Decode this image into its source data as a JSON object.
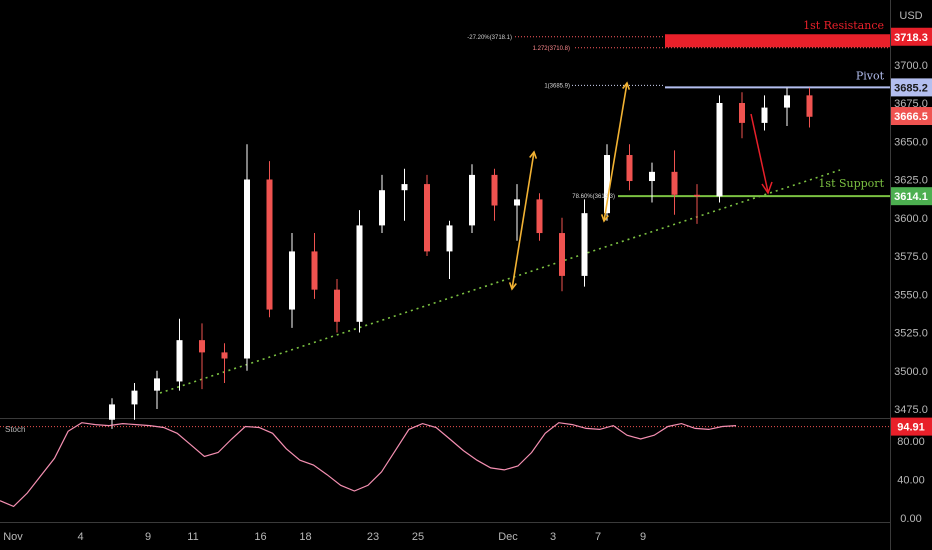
{
  "chart_data": {
    "type": "candlestick",
    "currency": "USD",
    "price_axis": {
      "ticks": [
        3475,
        3500,
        3525,
        3550,
        3575,
        3600,
        3625,
        3650,
        3675,
        3700
      ],
      "tick_labels": [
        "3475.0",
        "3500.0",
        "3525.0",
        "3550.0",
        "3575.0",
        "3600.0",
        "3625.0",
        "3650.0",
        "3675.0",
        "3700.0"
      ]
    },
    "x_axis": {
      "labels": [
        "Nov",
        "4",
        "9",
        "11",
        "16",
        "18",
        "23",
        "25",
        "Dec",
        "3",
        "7",
        "9"
      ],
      "label_bars": [
        0,
        3,
        6,
        8,
        11,
        13,
        16,
        18,
        22,
        24,
        26,
        28
      ]
    },
    "candles": [
      {
        "o": 3468,
        "h": 3482,
        "l": 3462,
        "c": 3478
      },
      {
        "o": 3478,
        "h": 3492,
        "l": 3468,
        "c": 3487
      },
      {
        "o": 3487,
        "h": 3500,
        "l": 3475,
        "c": 3495
      },
      {
        "o": 3493,
        "h": 3534,
        "l": 3487,
        "c": 3520
      },
      {
        "o": 3520,
        "h": 3531,
        "l": 3488,
        "c": 3512
      },
      {
        "o": 3512,
        "h": 3518,
        "l": 3492,
        "c": 3508
      },
      {
        "o": 3508,
        "h": 3648,
        "l": 3500,
        "c": 3625
      },
      {
        "o": 3625,
        "h": 3637,
        "l": 3535,
        "c": 3540
      },
      {
        "o": 3540,
        "h": 3590,
        "l": 3528,
        "c": 3578
      },
      {
        "o": 3578,
        "h": 3590,
        "l": 3547,
        "c": 3553
      },
      {
        "o": 3553,
        "h": 3560,
        "l": 3525,
        "c": 3532
      },
      {
        "o": 3532,
        "h": 3605,
        "l": 3525,
        "c": 3595
      },
      {
        "o": 3595,
        "h": 3628,
        "l": 3590,
        "c": 3618
      },
      {
        "o": 3618,
        "h": 3632,
        "l": 3598,
        "c": 3622
      },
      {
        "o": 3622,
        "h": 3628,
        "l": 3575,
        "c": 3578
      },
      {
        "o": 3578,
        "h": 3598,
        "l": 3560,
        "c": 3595
      },
      {
        "o": 3595,
        "h": 3635,
        "l": 3590,
        "c": 3628
      },
      {
        "o": 3628,
        "h": 3632,
        "l": 3598,
        "c": 3608
      },
      {
        "o": 3608,
        "h": 3622,
        "l": 3585,
        "c": 3612
      },
      {
        "o": 3612,
        "h": 3616,
        "l": 3585,
        "c": 3590
      },
      {
        "o": 3590,
        "h": 3600,
        "l": 3552,
        "c": 3562
      },
      {
        "o": 3562,
        "h": 3612,
        "l": 3555,
        "c": 3603
      },
      {
        "o": 3603,
        "h": 3648,
        "l": 3598,
        "c": 3641
      },
      {
        "o": 3641,
        "h": 3648,
        "l": 3618,
        "c": 3624
      },
      {
        "o": 3624,
        "h": 3636,
        "l": 3610,
        "c": 3630
      },
      {
        "o": 3630,
        "h": 3644,
        "l": 3602,
        "c": 3615
      },
      {
        "o": 3615,
        "h": 3622,
        "l": 3596,
        "c": 3614
      },
      {
        "o": 3614,
        "h": 3680,
        "l": 3610,
        "c": 3675
      },
      {
        "o": 3675,
        "h": 3682,
        "l": 3652,
        "c": 3662
      },
      {
        "o": 3662,
        "h": 3680,
        "l": 3657,
        "c": 3672
      },
      {
        "o": 3672,
        "h": 3685,
        "l": 3660,
        "c": 3680
      },
      {
        "o": 3680,
        "h": 3685,
        "l": 3659,
        "c": 3666
      }
    ],
    "annotations": {
      "resistance_label": "1st Resistance",
      "resistance_price": "3718.3",
      "resistance_value": 3718.3,
      "pivot_label": "Pivot",
      "pivot_price": "3685.2",
      "pivot_value": 3685.2,
      "support_label": "1st Support",
      "support_price": "3614.1",
      "support_value": 3614.1,
      "current_price": "3666.5",
      "current_value": 3666.5,
      "fib_ext_1": "-27.20%(3718.1)",
      "fib_ext_2": "1.272(3710.8)",
      "fib_1": "1(3685.9)",
      "fib_786": "78.60%(3613.3)"
    },
    "oscillator": {
      "name": "Stoch",
      "ticks": [
        0,
        40,
        80
      ],
      "tick_labels": [
        "0.00",
        "40.00",
        "80.00"
      ],
      "current": "94.91",
      "current_value": 94.91,
      "values": [
        18,
        12,
        26,
        44,
        62,
        90,
        99,
        97,
        96,
        98,
        97,
        96,
        94,
        88,
        76,
        64,
        68,
        82,
        95,
        94,
        88,
        72,
        60,
        55,
        45,
        34,
        28,
        34,
        48,
        70,
        92,
        98,
        94,
        82,
        70,
        60,
        52,
        50,
        54,
        68,
        88,
        99,
        97,
        93,
        92,
        96,
        86,
        82,
        86,
        95,
        98,
        93,
        92,
        95,
        96
      ]
    },
    "colors": {
      "up": "#ffffff",
      "down": "#ef5350",
      "resistance": "#e8202a",
      "pivot": "#b4bff0",
      "support": "#7cc242",
      "trendline": "#7cc242",
      "fib_arrow": "#f2b233",
      "forecast_arrow": "#e8202a",
      "stoch_line": "#f48fb1"
    }
  }
}
